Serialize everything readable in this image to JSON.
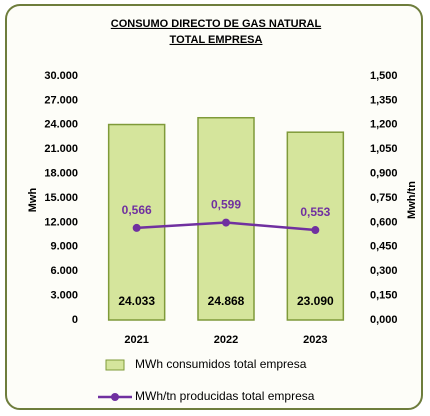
{
  "chart_data": {
    "type": "bar",
    "title": [
      "CONSUMO DIRECTO DE GAS NATURAL",
      "TOTAL EMPRESA"
    ],
    "categories": [
      "2021",
      "2022",
      "2023"
    ],
    "ylabel": "Mwh",
    "y2label": "Mwh/tn",
    "ylim": [
      0,
      30000
    ],
    "yticks": [
      0,
      {
        "value": 3000,
        "label": "3.000"
      },
      {
        "value": 6000,
        "label": "6.000"
      },
      {
        "value": 9000,
        "label": "9.000"
      },
      {
        "value": 12000,
        "label": "12.000"
      },
      {
        "value": 15000,
        "label": "15.000"
      },
      {
        "value": 18000,
        "label": "18.000"
      },
      {
        "value": 21000,
        "label": "21.000"
      },
      {
        "value": 24000,
        "label": "24.000"
      },
      {
        "value": 27000,
        "label": "27.000"
      },
      {
        "value": 30000,
        "label": "30.000"
      }
    ],
    "y2lim": [
      0,
      1.5
    ],
    "y2ticks": [
      {
        "value": 0,
        "label": "0,000"
      },
      {
        "value": 0.15,
        "label": "0,150"
      },
      {
        "value": 0.3,
        "label": "0,300"
      },
      {
        "value": 0.45,
        "label": "0,450"
      },
      {
        "value": 0.6,
        "label": "0,600"
      },
      {
        "value": 0.75,
        "label": "0,750"
      },
      {
        "value": 0.9,
        "label": "0,900"
      },
      {
        "value": 1.05,
        "label": "1,050"
      },
      {
        "value": 1.2,
        "label": "1,200"
      },
      {
        "value": 1.35,
        "label": "1,350"
      },
      {
        "value": 1.5,
        "label": "1,500"
      }
    ],
    "grid": false,
    "legend": "bottom",
    "series": [
      {
        "name": "MWh consumidos total empresa",
        "type": "bar",
        "color": "#d5e59c",
        "values": [
          24033,
          24868,
          23090
        ],
        "value_labels": [
          "24.033",
          "24.868",
          "23.090"
        ]
      },
      {
        "name": "MWh/tn producidas total empresa",
        "type": "line",
        "axis": "y2",
        "color": "#7030a0",
        "values": [
          0.566,
          0.599,
          0.553
        ],
        "value_labels": [
          "0,566",
          "0,599",
          "0,553"
        ]
      }
    ]
  }
}
